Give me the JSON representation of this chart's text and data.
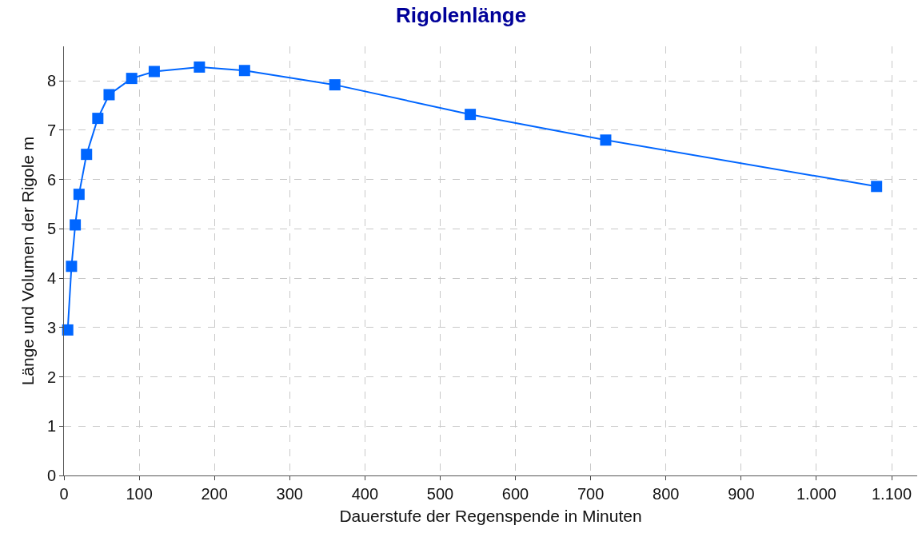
{
  "chart_data": {
    "type": "line",
    "title": "Rigolenlänge",
    "xlabel": "Dauerstufe der Regenspende in Minuten",
    "ylabel": "Länge und Volumen der Rigole m",
    "x": [
      5,
      10,
      15,
      20,
      30,
      45,
      60,
      90,
      120,
      180,
      240,
      360,
      540,
      720,
      1080
    ],
    "series": [
      {
        "color": "#0066ff",
        "values": [
          2.95,
          4.24,
          5.08,
          5.7,
          6.51,
          7.24,
          7.72,
          8.05,
          8.19,
          8.28,
          8.21,
          7.92,
          7.32,
          6.8,
          5.86
        ]
      }
    ],
    "xlim": [
      0,
      1134
    ],
    "xticks": [
      0,
      100,
      200,
      300,
      400,
      500,
      600,
      700,
      800,
      900,
      {
        "value": 1000,
        "label": "1.000"
      },
      {
        "value": 1100,
        "label": "1.100"
      }
    ],
    "ylim": [
      0,
      8.7
    ],
    "yticks": [
      0,
      1,
      2,
      3,
      4,
      5,
      6,
      7,
      8
    ],
    "grid": true,
    "marker": "square",
    "line_style": "solid"
  }
}
